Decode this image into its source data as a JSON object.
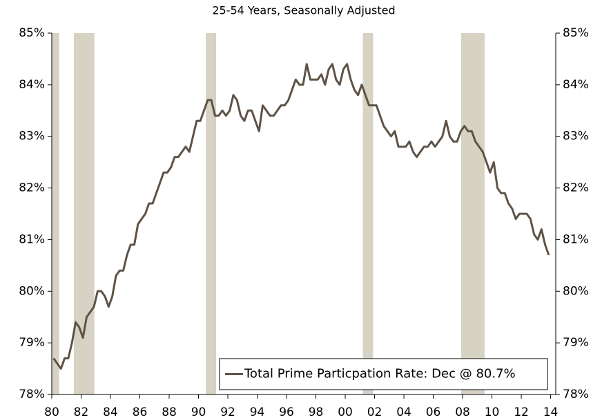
{
  "chart_data": {
    "type": "line",
    "subtitle": "25-54 Years, Seasonally Adjusted",
    "xlim": [
      1980,
      2014.35
    ],
    "xticks": [
      {
        "value": 1980,
        "label": "80"
      },
      {
        "value": 1982,
        "label": "82"
      },
      {
        "value": 1984,
        "label": "84"
      },
      {
        "value": 1986,
        "label": "86"
      },
      {
        "value": 1988,
        "label": "88"
      },
      {
        "value": 1990,
        "label": "90"
      },
      {
        "value": 1992,
        "label": "92"
      },
      {
        "value": 1994,
        "label": "94"
      },
      {
        "value": 1996,
        "label": "96"
      },
      {
        "value": 1998,
        "label": "98"
      },
      {
        "value": 2000,
        "label": "00"
      },
      {
        "value": 2002,
        "label": "02"
      },
      {
        "value": 2004,
        "label": "04"
      },
      {
        "value": 2006,
        "label": "06"
      },
      {
        "value": 2008,
        "label": "08"
      },
      {
        "value": 2010,
        "label": "10"
      },
      {
        "value": 2012,
        "label": "12"
      },
      {
        "value": 2014,
        "label": "14"
      }
    ],
    "ylim": [
      78,
      85
    ],
    "yticks": [
      {
        "value": 78,
        "label": "78%"
      },
      {
        "value": 79,
        "label": "79%"
      },
      {
        "value": 80,
        "label": "80%"
      },
      {
        "value": 81,
        "label": "81%"
      },
      {
        "value": 82,
        "label": "82%"
      },
      {
        "value": 83,
        "label": "83%"
      },
      {
        "value": 84,
        "label": "84%"
      },
      {
        "value": 85,
        "label": "85%"
      }
    ],
    "y2lim": [
      78,
      85
    ],
    "y2ticks": [
      {
        "value": 78,
        "label": "78%"
      },
      {
        "value": 79,
        "label": "79%"
      },
      {
        "value": 80,
        "label": "80%"
      },
      {
        "value": 81,
        "label": "81%"
      },
      {
        "value": 82,
        "label": "82%"
      },
      {
        "value": 83,
        "label": "83%"
      },
      {
        "value": 84,
        "label": "84%"
      },
      {
        "value": 85,
        "label": "85%"
      }
    ],
    "recessions": [
      [
        1980.0,
        1980.5
      ],
      [
        1981.5,
        1982.9
      ],
      [
        1990.5,
        1991.2
      ],
      [
        2001.2,
        2001.9
      ],
      [
        2007.9,
        2009.5
      ]
    ],
    "recession_color": "#d6d2c4",
    "legend": "lower right",
    "x": [
      1980.125,
      1980.375,
      1980.625,
      1980.875,
      1981.125,
      1981.375,
      1981.625,
      1981.875,
      1982.125,
      1982.375,
      1982.625,
      1982.875,
      1983.125,
      1983.375,
      1983.625,
      1983.875,
      1984.125,
      1984.375,
      1984.625,
      1984.875,
      1985.125,
      1985.375,
      1985.625,
      1985.875,
      1986.125,
      1986.375,
      1986.625,
      1986.875,
      1987.125,
      1987.375,
      1987.625,
      1987.875,
      1988.125,
      1988.375,
      1988.625,
      1988.875,
      1989.125,
      1989.375,
      1989.625,
      1989.875,
      1990.125,
      1990.375,
      1990.625,
      1990.875,
      1991.125,
      1991.375,
      1991.625,
      1991.875,
      1992.125,
      1992.375,
      1992.625,
      1992.875,
      1993.125,
      1993.375,
      1993.625,
      1993.875,
      1994.125,
      1994.375,
      1994.625,
      1994.875,
      1995.125,
      1995.375,
      1995.625,
      1995.875,
      1996.125,
      1996.375,
      1996.625,
      1996.875,
      1997.125,
      1997.375,
      1997.625,
      1997.875,
      1998.125,
      1998.375,
      1998.625,
      1998.875,
      1999.125,
      1999.375,
      1999.625,
      1999.875,
      2000.125,
      2000.375,
      2000.625,
      2000.875,
      2001.125,
      2001.375,
      2001.625,
      2001.875,
      2002.125,
      2002.375,
      2002.625,
      2002.875,
      2003.125,
      2003.375,
      2003.625,
      2003.875,
      2004.125,
      2004.375,
      2004.625,
      2004.875,
      2005.125,
      2005.375,
      2005.625,
      2005.875,
      2006.125,
      2006.375,
      2006.625,
      2006.875,
      2007.125,
      2007.375,
      2007.625,
      2007.875,
      2008.125,
      2008.375,
      2008.625,
      2008.875,
      2009.125,
      2009.375,
      2009.625,
      2009.875,
      2010.125,
      2010.375,
      2010.625,
      2010.875,
      2011.125,
      2011.375,
      2011.625,
      2011.875,
      2012.125,
      2012.375,
      2012.625,
      2012.875,
      2013.125,
      2013.375,
      2013.625,
      2013.875
    ],
    "series": [
      {
        "name": "Total Prime Particpation Rate: Dec @ 80.7%",
        "color": "#5e5246",
        "values": [
          78.7,
          78.6,
          78.5,
          78.7,
          78.7,
          79.0,
          79.4,
          79.3,
          79.1,
          79.5,
          79.6,
          79.7,
          80.0,
          80.0,
          79.9,
          79.7,
          79.9,
          80.3,
          80.4,
          80.4,
          80.7,
          80.9,
          80.9,
          81.3,
          81.4,
          81.5,
          81.7,
          81.7,
          81.9,
          82.1,
          82.3,
          82.3,
          82.4,
          82.6,
          82.6,
          82.7,
          82.8,
          82.7,
          83.0,
          83.3,
          83.3,
          83.5,
          83.7,
          83.7,
          83.4,
          83.4,
          83.5,
          83.4,
          83.5,
          83.8,
          83.7,
          83.4,
          83.3,
          83.5,
          83.5,
          83.3,
          83.1,
          83.6,
          83.5,
          83.4,
          83.4,
          83.5,
          83.6,
          83.6,
          83.7,
          83.9,
          84.1,
          84.0,
          84.0,
          84.4,
          84.1,
          84.1,
          84.1,
          84.2,
          84.0,
          84.3,
          84.4,
          84.1,
          84.0,
          84.3,
          84.4,
          84.1,
          83.9,
          83.8,
          84.0,
          83.8,
          83.6,
          83.6,
          83.6,
          83.4,
          83.2,
          83.1,
          83.0,
          83.1,
          82.8,
          82.8,
          82.8,
          82.9,
          82.7,
          82.6,
          82.7,
          82.8,
          82.8,
          82.9,
          82.8,
          82.9,
          83.0,
          83.3,
          83.0,
          82.9,
          82.9,
          83.1,
          83.2,
          83.1,
          83.1,
          82.9,
          82.8,
          82.7,
          82.5,
          82.3,
          82.5,
          82.0,
          81.9,
          81.9,
          81.7,
          81.6,
          81.4,
          81.5,
          81.5,
          81.5,
          81.4,
          81.1,
          81.0,
          81.2,
          80.9,
          80.7
        ]
      }
    ]
  }
}
